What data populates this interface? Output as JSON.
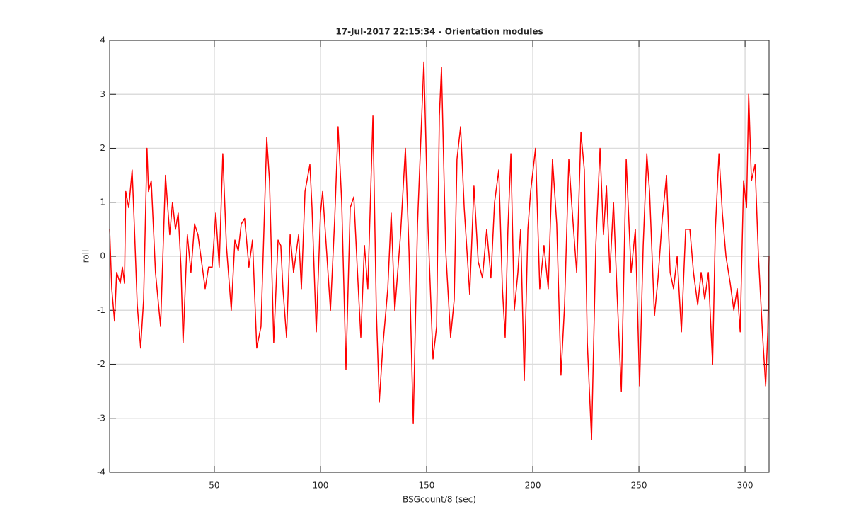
{
  "chart_data": {
    "type": "line",
    "title": "17-Jul-2017 22:15:34 - Orientation modules",
    "x_label": "BSGcount/8 (sec)",
    "y_label": "roll",
    "xlim": [
      0.7,
      311.3
    ],
    "ylim": [
      -4,
      4
    ],
    "xticks": [
      50,
      100,
      150,
      200,
      250,
      300
    ],
    "yticks": [
      -4,
      -3,
      -2,
      -1,
      0,
      1,
      2,
      3,
      4
    ],
    "grid": true,
    "series": [
      {
        "name": "roll",
        "color": "#ff0000",
        "x": [
          0.7,
          1.7,
          3,
          4,
          5.7,
          6.7,
          7.7,
          8.3,
          9.7,
          11.3,
          12.3,
          13.7,
          15.3,
          16.7,
          18.3,
          19,
          20.3,
          22.3,
          24.7,
          27,
          29,
          30.3,
          31.7,
          33,
          34.3,
          35.3,
          37.3,
          39,
          40.7,
          42.3,
          44,
          45.7,
          47.3,
          49,
          50.7,
          52.3,
          54,
          55.7,
          58,
          59.7,
          61.3,
          62.7,
          64.3,
          66.3,
          68,
          70,
          72,
          74.7,
          76,
          78,
          80,
          81.3,
          82.3,
          84,
          85.7,
          87.3,
          89.7,
          91,
          92.7,
          95,
          96,
          98,
          100,
          101,
          102.7,
          104.7,
          106.7,
          108.3,
          110,
          112,
          114,
          115.7,
          117.3,
          119,
          120.7,
          122.3,
          124.7,
          126.3,
          127.7,
          129.3,
          131.7,
          133.3,
          135,
          137.7,
          140,
          141.7,
          143.7,
          145.7,
          147.7,
          148.7,
          150.7,
          153,
          154.7,
          156,
          157,
          159,
          161.3,
          163,
          164.3,
          166,
          167.7,
          170.3,
          172.3,
          174.3,
          176.3,
          178.3,
          180.3,
          182,
          184,
          185.7,
          187,
          188.3,
          189.7,
          191.3,
          193,
          194.3,
          196,
          197.7,
          199,
          201.3,
          203.3,
          205.3,
          207.3,
          209.3,
          211.3,
          213.3,
          215,
          217,
          218.3,
          220.7,
          222.7,
          224.3,
          225.7,
          227.7,
          229.7,
          231.7,
          233.3,
          234.7,
          236.3,
          238,
          239.7,
          241.7,
          244,
          246.3,
          248.3,
          250.3,
          252,
          253.7,
          255,
          257.3,
          259,
          261,
          263,
          264.7,
          266.3,
          268,
          270,
          272,
          274,
          275.7,
          277.7,
          279.3,
          281,
          282.7,
          284.7,
          286,
          287.7,
          289.3,
          291,
          293,
          294.7,
          296.3,
          297.7,
          299.3,
          300.7,
          301.7,
          303,
          304.7,
          306.3,
          308.3,
          309.7,
          310.7,
          311.3
        ],
        "values": [
          0.5,
          -0.6,
          -1.2,
          -0.3,
          -0.5,
          -0.2,
          -0.5,
          1.2,
          0.9,
          1.6,
          0.6,
          -0.9,
          -1.7,
          -0.8,
          2.0,
          1.2,
          1.4,
          -0.3,
          -1.3,
          1.5,
          0.4,
          1.0,
          0.5,
          0.8,
          -0.2,
          -1.6,
          0.4,
          -0.3,
          0.6,
          0.4,
          -0.1,
          -0.6,
          -0.2,
          -0.2,
          0.8,
          -0.2,
          1.9,
          0.2,
          -1.0,
          0.3,
          0.1,
          0.6,
          0.7,
          -0.2,
          0.3,
          -1.7,
          -1.3,
          2.2,
          1.4,
          -1.6,
          0.3,
          0.2,
          -0.6,
          -1.5,
          0.4,
          -0.3,
          0.4,
          -0.6,
          1.2,
          1.7,
          0.9,
          -1.4,
          0.8,
          1.2,
          0.2,
          -1.0,
          0.7,
          2.4,
          1.0,
          -2.1,
          0.9,
          1.1,
          -0.2,
          -1.5,
          0.2,
          -0.6,
          2.6,
          -1.0,
          -2.7,
          -1.7,
          -0.6,
          0.8,
          -1.0,
          0.4,
          2.0,
          0.1,
          -3.1,
          0.6,
          2.6,
          3.6,
          0.5,
          -1.9,
          -1.3,
          2.6,
          3.5,
          0.1,
          -1.5,
          -0.8,
          1.8,
          2.4,
          0.9,
          -0.7,
          1.3,
          -0.1,
          -0.4,
          0.5,
          -0.4,
          1.0,
          1.6,
          -0.6,
          -1.5,
          0.5,
          1.9,
          -1.0,
          -0.3,
          0.5,
          -2.3,
          0.5,
          1.2,
          2.0,
          -0.6,
          0.2,
          -0.6,
          1.8,
          0.6,
          -2.2,
          -0.9,
          1.8,
          1.0,
          -0.3,
          2.3,
          1.6,
          -1.6,
          -3.4,
          0.2,
          2.0,
          0.4,
          1.3,
          -0.3,
          1.0,
          -0.7,
          -2.5,
          1.8,
          -0.3,
          0.5,
          -2.4,
          0.2,
          1.9,
          1.2,
          -1.1,
          -0.4,
          0.7,
          1.5,
          -0.3,
          -0.6,
          0.0,
          -1.4,
          0.5,
          0.5,
          -0.3,
          -0.9,
          -0.3,
          -0.8,
          -0.3,
          -2.0,
          0.5,
          1.9,
          0.8,
          0.0,
          -0.5,
          -1.0,
          -0.6,
          -1.4,
          1.4,
          0.9,
          3.0,
          1.4,
          1.7,
          0.0,
          -1.5,
          -2.4,
          -1.4,
          0.0
        ]
      }
    ]
  }
}
